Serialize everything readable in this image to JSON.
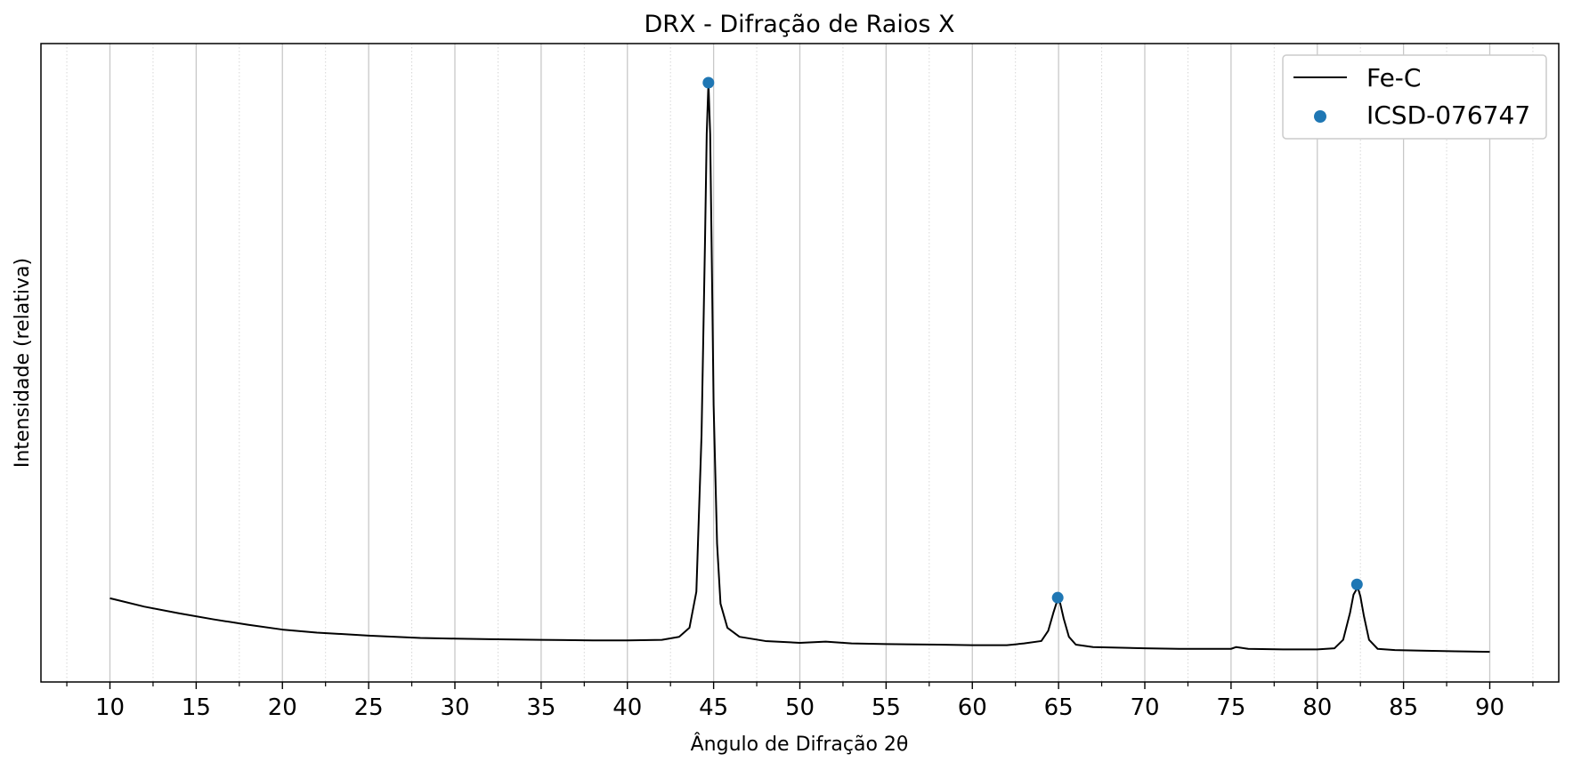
{
  "chart_data": {
    "type": "line",
    "title": "DRX - Difração de Raios X",
    "xlabel": "Ângulo de Difração 2θ",
    "ylabel": "Intensidade (relativa)",
    "xlim": [
      6,
      94
    ],
    "ylim": [
      -0.03,
      1.03
    ],
    "x_major_ticks": [
      10,
      15,
      20,
      25,
      30,
      35,
      40,
      45,
      50,
      55,
      60,
      65,
      70,
      75,
      80,
      85,
      90
    ],
    "x_minor_step": 2.5,
    "y_ticks_shown": false,
    "grid": {
      "x_major": true,
      "x_minor": true,
      "y": false
    },
    "legend_position": "top-right",
    "colors": {
      "line": "#000000",
      "markers": "#1f77b4",
      "grid_major": "#c8c8c8",
      "grid_minor": "#d6d6d6"
    },
    "series": [
      {
        "name": "Fe-C",
        "kind": "line",
        "color": "#000000",
        "x": [
          10,
          12,
          14,
          16,
          18,
          20,
          22,
          25,
          28,
          30,
          32,
          35,
          38,
          40,
          42,
          43,
          43.6,
          44.0,
          44.3,
          44.5,
          44.6,
          44.7,
          44.8,
          44.9,
          45.0,
          45.2,
          45.4,
          45.8,
          46.5,
          48,
          50,
          51.5,
          53,
          55,
          58,
          60,
          62,
          63,
          64,
          64.4,
          64.7,
          64.9,
          65.0,
          65.1,
          65.3,
          65.6,
          66.0,
          67,
          70,
          72,
          75,
          75.3,
          76,
          78,
          80,
          81,
          81.5,
          81.9,
          82.1,
          82.3,
          82.4,
          82.5,
          82.7,
          83.0,
          83.5,
          84.5,
          86,
          88,
          90
        ],
        "y": [
          0.109,
          0.095,
          0.084,
          0.074,
          0.065,
          0.057,
          0.052,
          0.047,
          0.043,
          0.042,
          0.041,
          0.04,
          0.039,
          0.039,
          0.04,
          0.045,
          0.06,
          0.12,
          0.38,
          0.7,
          0.88,
          0.965,
          0.88,
          0.66,
          0.43,
          0.2,
          0.1,
          0.06,
          0.045,
          0.038,
          0.035,
          0.037,
          0.034,
          0.033,
          0.032,
          0.031,
          0.031,
          0.034,
          0.038,
          0.055,
          0.085,
          0.103,
          0.107,
          0.1,
          0.075,
          0.045,
          0.032,
          0.028,
          0.026,
          0.025,
          0.025,
          0.028,
          0.025,
          0.024,
          0.024,
          0.026,
          0.04,
          0.085,
          0.115,
          0.125,
          0.122,
          0.112,
          0.08,
          0.04,
          0.025,
          0.023,
          0.022,
          0.021,
          0.02
        ]
      },
      {
        "name": "ICSD-076747",
        "kind": "scatter",
        "color": "#1f77b4",
        "x": [
          44.7,
          64.95,
          82.3
        ],
        "y": [
          0.965,
          0.11,
          0.132
        ]
      }
    ]
  }
}
